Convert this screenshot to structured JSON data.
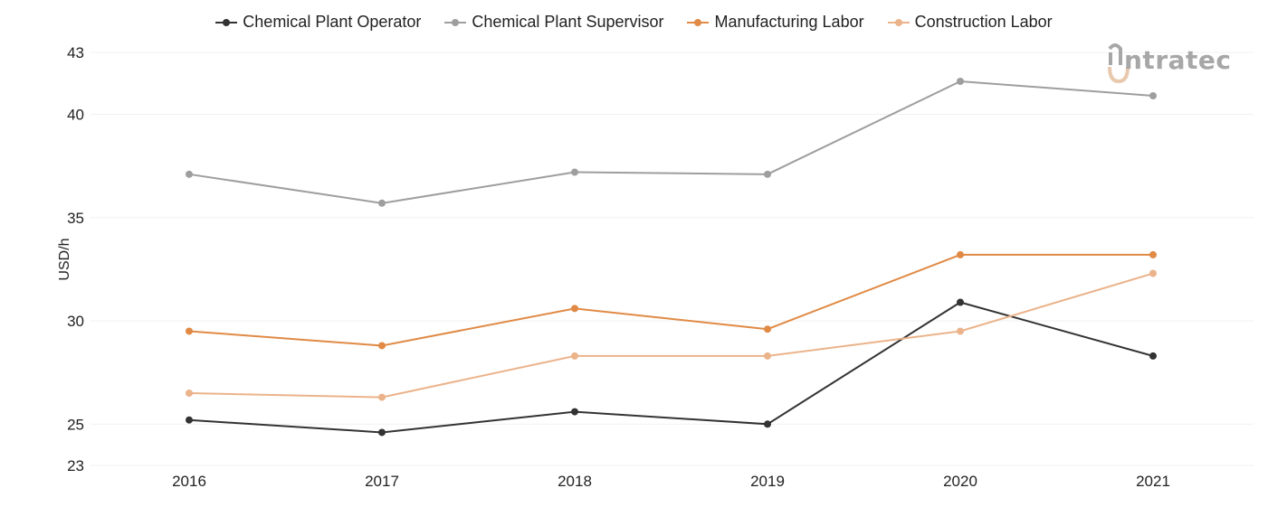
{
  "chart_data": {
    "type": "line",
    "categories": [
      "2016",
      "2017",
      "2018",
      "2019",
      "2020",
      "2021"
    ],
    "ylabel": "USD/h",
    "xlabel": "",
    "ylim": [
      23,
      43
    ],
    "yticks": [
      23,
      25,
      30,
      35,
      40,
      43
    ],
    "grid": "horizontal",
    "legend_position": "top-center",
    "series": [
      {
        "name": "Chemical Plant Operator",
        "color": "#333333",
        "values": [
          25.2,
          24.6,
          25.6,
          25.0,
          30.9,
          28.3
        ]
      },
      {
        "name": "Chemical Plant Supervisor",
        "color": "#9e9e9e",
        "values": [
          37.1,
          35.7,
          37.2,
          37.1,
          41.6,
          40.9
        ]
      },
      {
        "name": "Manufacturing Labor",
        "color": "#e08a45",
        "values": [
          29.5,
          28.8,
          30.6,
          29.6,
          33.2,
          33.2
        ]
      },
      {
        "name": "Construction Labor",
        "color": "#ebb38a",
        "values": [
          26.5,
          26.3,
          28.3,
          28.3,
          29.5,
          32.3
        ]
      }
    ]
  },
  "brand": {
    "logo_text": "ntratec",
    "logo_color": "#a7a7a7",
    "logo_accent": "#e8c9ad",
    "logo_icon": "intratec-logo-icon"
  }
}
